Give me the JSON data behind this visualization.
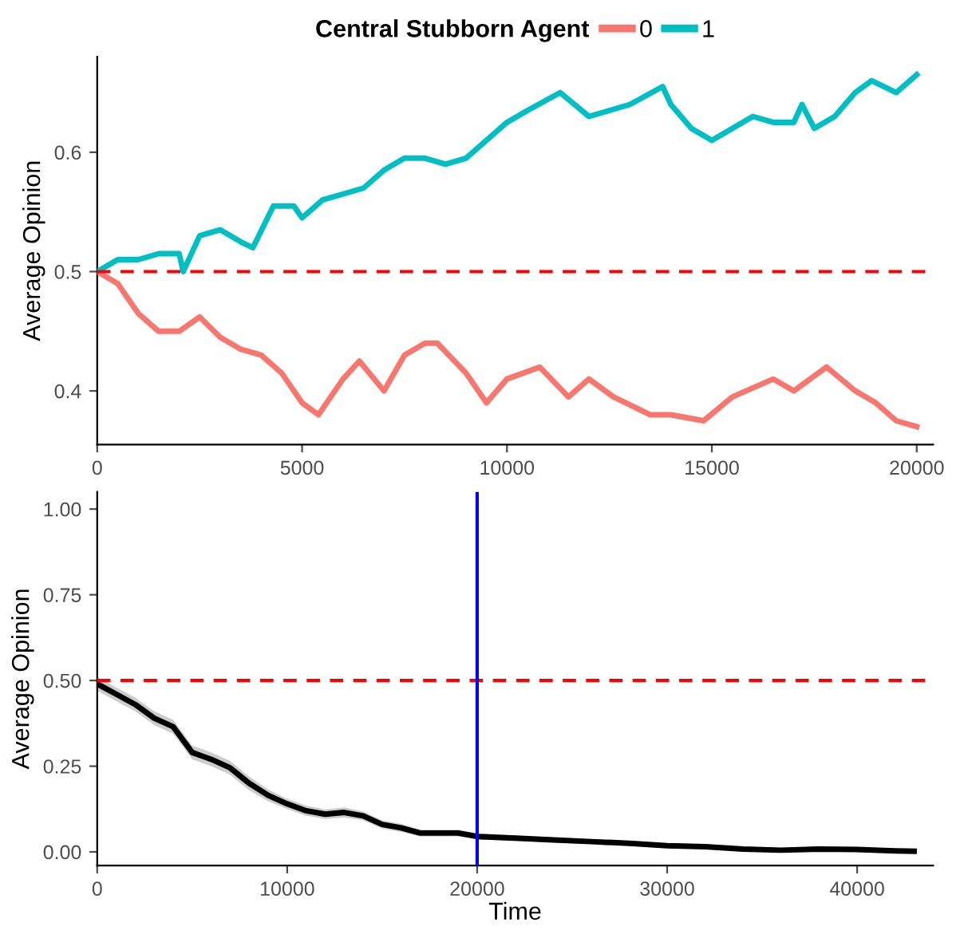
{
  "chart_data": [
    {
      "type": "line",
      "ylabel": "Average Opinion",
      "legend_title": "Central Stubborn Agent",
      "legend": "top",
      "grid": false,
      "xlim": [
        0,
        20400
      ],
      "xticks": [
        0,
        5000,
        10000,
        15000,
        20000
      ],
      "ylim": [
        0.355,
        0.68
      ],
      "yticks": [
        0.4,
        0.5,
        0.6
      ],
      "ref_lines": [
        {
          "axis": "y",
          "value": 0.5,
          "color": "#ff0000",
          "line_style": "dashed"
        }
      ],
      "series": [
        {
          "name": "0",
          "color": "#f8766d",
          "x": [
            0,
            500,
            1000,
            1500,
            2000,
            2500,
            3000,
            3500,
            4000,
            4500,
            5000,
            5400,
            6000,
            6400,
            7000,
            7500,
            8000,
            8300,
            9000,
            9500,
            10000,
            10800,
            11500,
            12000,
            12600,
            13500,
            14000,
            14800,
            15500,
            16500,
            17000,
            17800,
            18500,
            19000,
            19500,
            20000
          ],
          "values": [
            0.5,
            0.49,
            0.465,
            0.45,
            0.45,
            0.462,
            0.445,
            0.435,
            0.43,
            0.415,
            0.39,
            0.38,
            0.41,
            0.425,
            0.4,
            0.43,
            0.44,
            0.44,
            0.415,
            0.39,
            0.41,
            0.42,
            0.395,
            0.41,
            0.395,
            0.38,
            0.38,
            0.375,
            0.395,
            0.41,
            0.4,
            0.42,
            0.4,
            0.39,
            0.375,
            0.37
          ]
        },
        {
          "name": "1",
          "color": "#00bfc4",
          "x": [
            0,
            500,
            1000,
            1500,
            2000,
            2100,
            2500,
            3000,
            3500,
            3800,
            4300,
            4800,
            5000,
            5500,
            6000,
            6500,
            7000,
            7500,
            8000,
            8500,
            9000,
            9500,
            10000,
            10500,
            11300,
            12000,
            12500,
            13000,
            13800,
            14000,
            14500,
            15000,
            15500,
            16000,
            16500,
            17000,
            17200,
            17500,
            18000,
            18500,
            18900,
            19500,
            20000
          ],
          "values": [
            0.5,
            0.51,
            0.51,
            0.515,
            0.515,
            0.5,
            0.53,
            0.535,
            0.525,
            0.52,
            0.555,
            0.555,
            0.545,
            0.56,
            0.565,
            0.57,
            0.585,
            0.595,
            0.595,
            0.59,
            0.595,
            0.61,
            0.625,
            0.635,
            0.65,
            0.63,
            0.635,
            0.64,
            0.655,
            0.64,
            0.62,
            0.61,
            0.62,
            0.63,
            0.625,
            0.625,
            0.64,
            0.62,
            0.63,
            0.65,
            0.66,
            0.65,
            0.665
          ]
        }
      ]
    },
    {
      "type": "line",
      "xlabel": "Time",
      "ylabel": "Average Opinion",
      "grid": false,
      "xlim": [
        0,
        44000
      ],
      "xticks": [
        0,
        10000,
        20000,
        30000,
        40000
      ],
      "ylim": [
        -0.04,
        1.05
      ],
      "yticks": [
        {
          "value": 0,
          "label": "0.00"
        },
        {
          "value": 0.25,
          "label": "0.25"
        },
        {
          "value": 0.5,
          "label": "0.50"
        },
        {
          "value": 0.75,
          "label": "0.75"
        },
        {
          "value": 1,
          "label": "1.00"
        }
      ],
      "ref_lines": [
        {
          "axis": "y",
          "value": 0.5,
          "color": "#ff0000",
          "line_style": "dashed"
        },
        {
          "axis": "x",
          "value": 20000,
          "color": "#0000ff",
          "line_style": "solid"
        }
      ],
      "series": [
        {
          "color": "#000000",
          "x": [
            0,
            1000,
            2000,
            3000,
            4000,
            5000,
            6000,
            7000,
            8000,
            9000,
            10000,
            11000,
            12000,
            13000,
            14000,
            15000,
            16000,
            17000,
            18000,
            19000,
            20000,
            22000,
            24000,
            26000,
            28000,
            30000,
            32000,
            34000,
            36000,
            38000,
            40000,
            42000,
            43000
          ],
          "values": [
            0.49,
            0.46,
            0.43,
            0.39,
            0.365,
            0.29,
            0.27,
            0.245,
            0.2,
            0.165,
            0.14,
            0.12,
            0.11,
            0.115,
            0.105,
            0.08,
            0.07,
            0.055,
            0.055,
            0.055,
            0.045,
            0.04,
            0.035,
            0.03,
            0.025,
            0.018,
            0.015,
            0.008,
            0.005,
            0.008,
            0.007,
            0.003,
            0.002
          ],
          "lower": [
            0.47,
            0.44,
            0.41,
            0.37,
            0.345,
            0.27,
            0.25,
            0.225,
            0.18,
            0.148,
            0.125,
            0.105,
            0.096,
            0.1,
            0.092,
            0.068,
            0.058,
            0.045,
            0.045,
            0.045,
            0.036,
            0.032,
            0.028,
            0.023,
            0.019,
            0.013,
            0.01,
            0.004,
            0.002,
            0.004,
            0.003,
            0.0,
            0.0
          ],
          "upper": [
            0.51,
            0.48,
            0.45,
            0.41,
            0.385,
            0.31,
            0.29,
            0.265,
            0.22,
            0.182,
            0.155,
            0.135,
            0.124,
            0.13,
            0.118,
            0.092,
            0.082,
            0.065,
            0.065,
            0.065,
            0.054,
            0.048,
            0.042,
            0.037,
            0.031,
            0.023,
            0.02,
            0.012,
            0.008,
            0.012,
            0.011,
            0.006,
            0.004
          ]
        }
      ]
    }
  ]
}
